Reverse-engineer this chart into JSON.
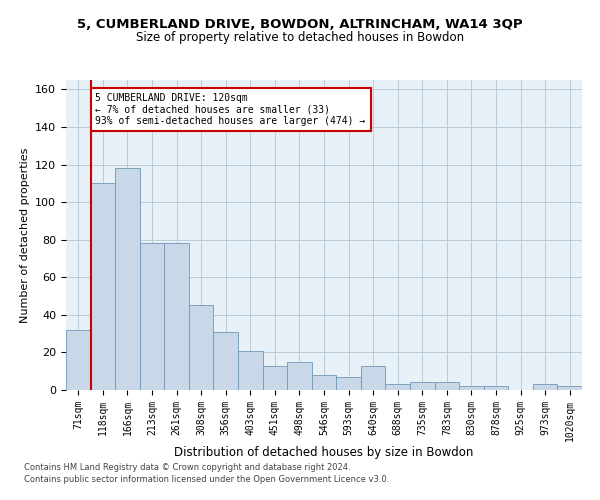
{
  "title": "5, CUMBERLAND DRIVE, BOWDON, ALTRINCHAM, WA14 3QP",
  "subtitle": "Size of property relative to detached houses in Bowdon",
  "xlabel": "Distribution of detached houses by size in Bowdon",
  "ylabel": "Number of detached properties",
  "bar_color": "#c8d8e8",
  "bar_edge_color": "#7098b8",
  "bar_edge_width": 0.6,
  "categories": [
    "71sqm",
    "118sqm",
    "166sqm",
    "213sqm",
    "261sqm",
    "308sqm",
    "356sqm",
    "403sqm",
    "451sqm",
    "498sqm",
    "546sqm",
    "593sqm",
    "640sqm",
    "688sqm",
    "735sqm",
    "783sqm",
    "830sqm",
    "878sqm",
    "925sqm",
    "973sqm",
    "1020sqm"
  ],
  "values": [
    32,
    110,
    118,
    78,
    78,
    45,
    31,
    21,
    13,
    15,
    8,
    7,
    13,
    3,
    4,
    4,
    2,
    2,
    0,
    3,
    2
  ],
  "ylim": [
    0,
    165
  ],
  "yticks": [
    0,
    20,
    40,
    60,
    80,
    100,
    120,
    140,
    160
  ],
  "property_line_label": "5 CUMBERLAND DRIVE: 120sqm",
  "annotation_line1": "← 7% of detached houses are smaller (33)",
  "annotation_line2": "93% of semi-detached houses are larger (474) →",
  "annotation_box_color": "#ffffff",
  "annotation_box_edge": "#cc0000",
  "vline_color": "#cc0000",
  "grid_color": "#b8ccd8",
  "bg_color": "#e8f0f8",
  "footnote1": "Contains HM Land Registry data © Crown copyright and database right 2024.",
  "footnote2": "Contains public sector information licensed under the Open Government Licence v3.0."
}
